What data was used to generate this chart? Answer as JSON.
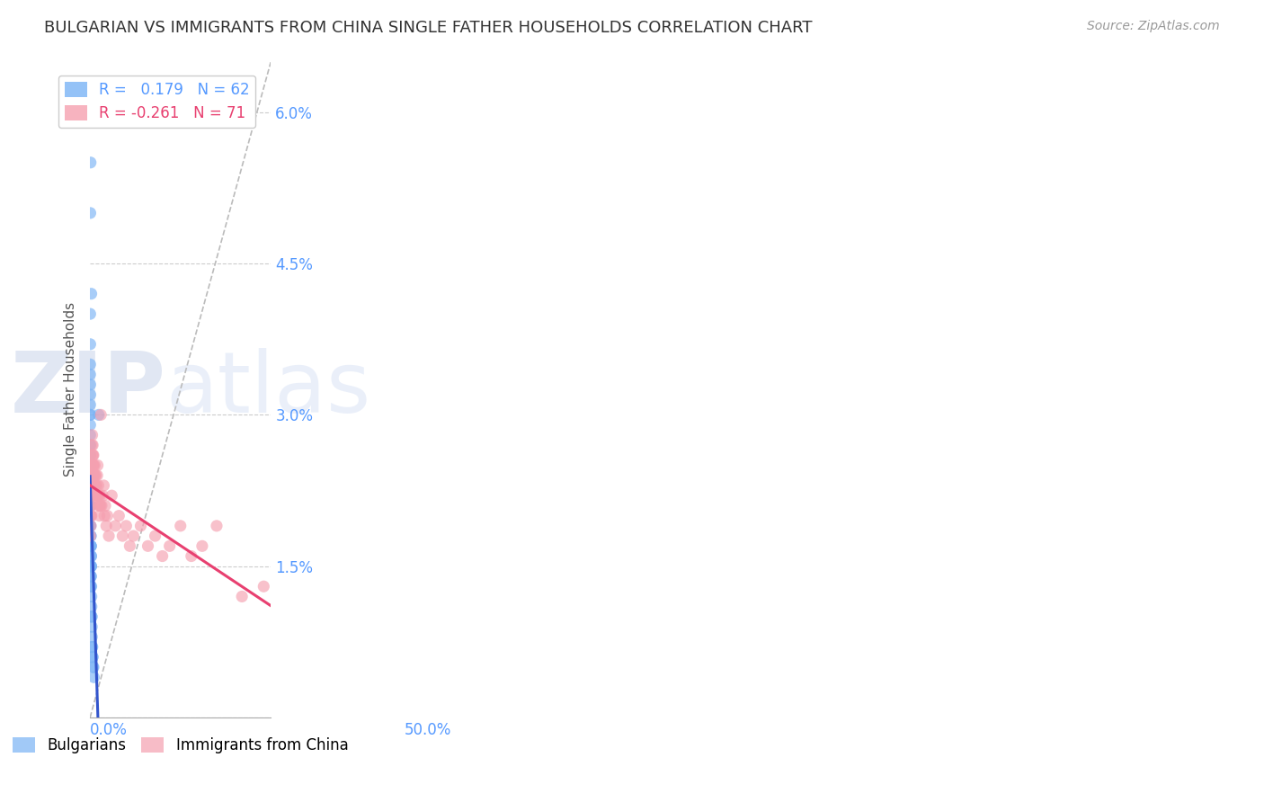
{
  "title": "BULGARIAN VS IMMIGRANTS FROM CHINA SINGLE FATHER HOUSEHOLDS CORRELATION CHART",
  "source": "Source: ZipAtlas.com",
  "ylabel": "Single Father Households",
  "xlim": [
    0.0,
    0.5
  ],
  "ylim": [
    0.0,
    0.065
  ],
  "yticks": [
    0.0,
    0.015,
    0.03,
    0.045,
    0.06
  ],
  "ytick_labels": [
    "",
    "1.5%",
    "3.0%",
    "4.5%",
    "6.0%"
  ],
  "bg_color": "#ffffff",
  "grid_color": "#cccccc",
  "blue_color": "#7ab3f5",
  "pink_color": "#f5a0b0",
  "blue_line_color": "#3355cc",
  "pink_line_color": "#e84070",
  "diagonal_color": "#bbbbbb",
  "legend_R1": " 0.179",
  "legend_N1": "62",
  "legend_R2": "-0.261",
  "legend_N2": "71",
  "watermark_zip": "ZIP",
  "watermark_atlas": "atlas",
  "bulgarians_x": [
    0.0015,
    0.0008,
    0.0035,
    0.0005,
    0.0006,
    0.0004,
    0.0003,
    0.0007,
    0.0009,
    0.0004,
    0.0005,
    0.0003,
    0.0004,
    0.0003,
    0.0004,
    0.0003,
    0.0004,
    0.0003,
    0.0004,
    0.0003,
    0.0004,
    0.0003,
    0.0003,
    0.0002,
    0.0003,
    0.0002,
    0.0003,
    0.0002,
    0.0003,
    0.0002,
    0.0003,
    0.0002,
    0.0003,
    0.0015,
    0.0018,
    0.002,
    0.0022,
    0.0025,
    0.0028,
    0.003,
    0.0032,
    0.0028,
    0.003,
    0.0032,
    0.0025,
    0.0027,
    0.0023,
    0.0035,
    0.0038,
    0.004,
    0.0042,
    0.0048,
    0.005,
    0.0052,
    0.0058,
    0.0065,
    0.0068,
    0.0075,
    0.0085,
    0.0095,
    0.0105,
    0.024
  ],
  "bulgarians_y": [
    0.055,
    0.05,
    0.042,
    0.04,
    0.037,
    0.035,
    0.034,
    0.033,
    0.032,
    0.031,
    0.03,
    0.03,
    0.029,
    0.028,
    0.027,
    0.027,
    0.026,
    0.026,
    0.025,
    0.025,
    0.024,
    0.024,
    0.023,
    0.022,
    0.022,
    0.021,
    0.021,
    0.021,
    0.02,
    0.02,
    0.02,
    0.019,
    0.019,
    0.019,
    0.018,
    0.018,
    0.017,
    0.017,
    0.017,
    0.016,
    0.016,
    0.015,
    0.015,
    0.015,
    0.014,
    0.014,
    0.013,
    0.013,
    0.012,
    0.011,
    0.01,
    0.01,
    0.009,
    0.008,
    0.007,
    0.007,
    0.006,
    0.006,
    0.005,
    0.005,
    0.004,
    0.03
  ],
  "china_x": [
    0.0008,
    0.001,
    0.0012,
    0.002,
    0.0022,
    0.0025,
    0.0028,
    0.003,
    0.0035,
    0.0038,
    0.004,
    0.0042,
    0.0045,
    0.005,
    0.0052,
    0.0055,
    0.006,
    0.0065,
    0.007,
    0.0075,
    0.008,
    0.0085,
    0.009,
    0.0095,
    0.01,
    0.011,
    0.012,
    0.013,
    0.014,
    0.015,
    0.016,
    0.017,
    0.018,
    0.019,
    0.02,
    0.021,
    0.022,
    0.023,
    0.024,
    0.025,
    0.026,
    0.027,
    0.028,
    0.029,
    0.03,
    0.032,
    0.035,
    0.038,
    0.04,
    0.042,
    0.045,
    0.048,
    0.052,
    0.06,
    0.07,
    0.08,
    0.09,
    0.1,
    0.11,
    0.12,
    0.14,
    0.16,
    0.18,
    0.2,
    0.22,
    0.25,
    0.28,
    0.31,
    0.35,
    0.42,
    0.48
  ],
  "china_y": [
    0.02,
    0.018,
    0.022,
    0.021,
    0.019,
    0.023,
    0.02,
    0.025,
    0.022,
    0.021,
    0.02,
    0.024,
    0.023,
    0.027,
    0.025,
    0.024,
    0.028,
    0.026,
    0.025,
    0.027,
    0.026,
    0.025,
    0.024,
    0.026,
    0.025,
    0.024,
    0.023,
    0.025,
    0.024,
    0.023,
    0.024,
    0.022,
    0.023,
    0.022,
    0.024,
    0.025,
    0.022,
    0.023,
    0.022,
    0.021,
    0.02,
    0.021,
    0.022,
    0.021,
    0.03,
    0.021,
    0.022,
    0.023,
    0.02,
    0.021,
    0.019,
    0.02,
    0.018,
    0.022,
    0.019,
    0.02,
    0.018,
    0.019,
    0.017,
    0.018,
    0.019,
    0.017,
    0.018,
    0.016,
    0.017,
    0.019,
    0.016,
    0.017,
    0.019,
    0.012,
    0.013
  ]
}
